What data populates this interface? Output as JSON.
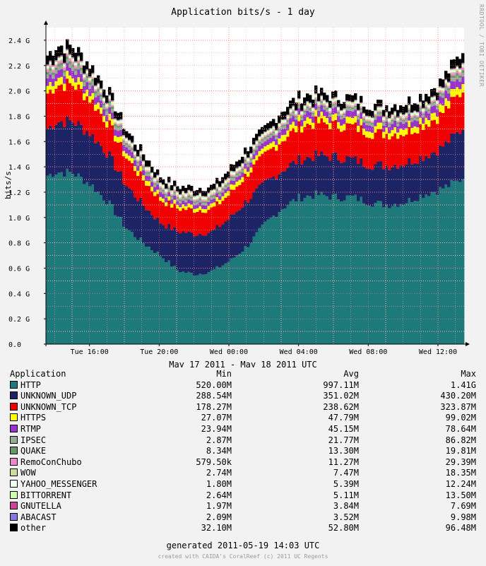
{
  "chart_data": {
    "type": "area",
    "stacked": true,
    "title": "Application bits/s - 1 day",
    "ylabel": "bits/s",
    "xlabel": "May 17 2011 - May 18 2011 UTC",
    "ylim": [
      0,
      2.5
    ],
    "y_unit": "G",
    "y_ticks": [
      "0.0",
      "0.2 G",
      "0.4 G",
      "0.6 G",
      "0.8 G",
      "1.0 G",
      "1.2 G",
      "1.4 G",
      "1.6 G",
      "1.8 G",
      "2.0 G",
      "2.2 G",
      "2.4 G"
    ],
    "x_ticks": [
      "Tue 16:00",
      "Tue 20:00",
      "Wed 00:00",
      "Wed 04:00",
      "Wed 08:00",
      "Wed 12:00"
    ],
    "grid": true,
    "x": [
      "Tue 13:30",
      "Tue 14:00",
      "Tue 15:00",
      "Tue 16:00",
      "Tue 17:00",
      "Tue 18:00",
      "Tue 19:00",
      "Tue 20:00",
      "Tue 21:00",
      "Tue 22:00",
      "Tue 23:00",
      "Wed 00:00",
      "Wed 01:00",
      "Wed 02:00",
      "Wed 03:00",
      "Wed 04:00",
      "Wed 05:00",
      "Wed 06:00",
      "Wed 07:00",
      "Wed 08:00",
      "Wed 09:00",
      "Wed 10:00",
      "Wed 11:00",
      "Wed 12:00",
      "Wed 13:00",
      "Wed 13:30"
    ],
    "series": [
      {
        "name": "HTTP",
        "color": "#1e7a7a",
        "values": [
          1.33,
          1.36,
          1.35,
          1.26,
          1.12,
          0.92,
          0.8,
          0.7,
          0.58,
          0.55,
          0.58,
          0.66,
          0.78,
          0.95,
          1.08,
          1.16,
          1.18,
          1.16,
          1.16,
          1.12,
          1.1,
          1.12,
          1.18,
          1.22,
          1.28,
          1.33
        ]
      },
      {
        "name": "UNKNOWN_UDP",
        "color": "#1c2466",
        "values": [
          0.37,
          0.4,
          0.41,
          0.4,
          0.38,
          0.34,
          0.3,
          0.26,
          0.31,
          0.32,
          0.31,
          0.34,
          0.36,
          0.32,
          0.3,
          0.3,
          0.31,
          0.32,
          0.3,
          0.3,
          0.31,
          0.31,
          0.3,
          0.32,
          0.38,
          0.4
        ]
      },
      {
        "name": "UNKNOWN_TCP",
        "color": "#f00000",
        "values": [
          0.28,
          0.29,
          0.29,
          0.27,
          0.24,
          0.22,
          0.2,
          0.18,
          0.18,
          0.19,
          0.18,
          0.19,
          0.21,
          0.22,
          0.24,
          0.26,
          0.26,
          0.25,
          0.26,
          0.25,
          0.25,
          0.24,
          0.25,
          0.26,
          0.29,
          0.3
        ]
      },
      {
        "name": "HTTPS",
        "color": "#ffff00",
        "values": [
          0.06,
          0.06,
          0.06,
          0.05,
          0.05,
          0.04,
          0.04,
          0.03,
          0.03,
          0.03,
          0.03,
          0.04,
          0.04,
          0.04,
          0.05,
          0.05,
          0.05,
          0.05,
          0.05,
          0.05,
          0.05,
          0.05,
          0.05,
          0.06,
          0.06,
          0.07
        ]
      },
      {
        "name": "RTMP",
        "color": "#9933cc",
        "values": [
          0.06,
          0.06,
          0.06,
          0.06,
          0.05,
          0.05,
          0.04,
          0.04,
          0.03,
          0.03,
          0.03,
          0.03,
          0.04,
          0.04,
          0.05,
          0.05,
          0.05,
          0.05,
          0.05,
          0.05,
          0.05,
          0.05,
          0.05,
          0.06,
          0.06,
          0.06
        ]
      },
      {
        "name": "IPSEC",
        "color": "#99aa99",
        "values": [
          0.03,
          0.03,
          0.03,
          0.03,
          0.03,
          0.02,
          0.02,
          0.02,
          0.02,
          0.02,
          0.02,
          0.02,
          0.02,
          0.02,
          0.02,
          0.02,
          0.02,
          0.02,
          0.02,
          0.02,
          0.02,
          0.02,
          0.02,
          0.02,
          0.03,
          0.03
        ]
      },
      {
        "name": "QUAKE",
        "color": "#669966",
        "values": [
          0.02,
          0.02,
          0.02,
          0.02,
          0.02,
          0.01,
          0.01,
          0.01,
          0.01,
          0.01,
          0.01,
          0.01,
          0.01,
          0.01,
          0.01,
          0.01,
          0.01,
          0.01,
          0.01,
          0.01,
          0.01,
          0.01,
          0.01,
          0.01,
          0.02,
          0.02
        ]
      },
      {
        "name": "RemoConChubo",
        "color": "#ee88cc",
        "values": [
          0.02,
          0.02,
          0.02,
          0.01,
          0.01,
          0.01,
          0.01,
          0.01,
          0.01,
          0.01,
          0.01,
          0.01,
          0.01,
          0.01,
          0.01,
          0.01,
          0.01,
          0.01,
          0.01,
          0.01,
          0.01,
          0.01,
          0.01,
          0.01,
          0.02,
          0.02
        ]
      },
      {
        "name": "WOW",
        "color": "#ccdd99",
        "values": [
          0.01,
          0.01,
          0.01,
          0.01,
          0.01,
          0.01,
          0.01,
          0.01,
          0.01,
          0.01,
          0.01,
          0.01,
          0.01,
          0.01,
          0.01,
          0.01,
          0.01,
          0.01,
          0.01,
          0.01,
          0.01,
          0.01,
          0.01,
          0.01,
          0.01,
          0.01
        ]
      },
      {
        "name": "YAHOO_MESSENGER",
        "color": "#eeffee",
        "values": [
          0.01,
          0.01,
          0.01,
          0.01,
          0.01,
          0.01,
          0.01,
          0.01,
          0.01,
          0.01,
          0.01,
          0.01,
          0.01,
          0.01,
          0.01,
          0.01,
          0.01,
          0.01,
          0.01,
          0.01,
          0.01,
          0.01,
          0.01,
          0.01,
          0.01,
          0.01
        ]
      },
      {
        "name": "BITTORRENT",
        "color": "#ccffaa",
        "values": [
          0.01,
          0.01,
          0.01,
          0.01,
          0.01,
          0.01,
          0.01,
          0.01,
          0.01,
          0.01,
          0.01,
          0.01,
          0.01,
          0.01,
          0.01,
          0.01,
          0.01,
          0.01,
          0.01,
          0.01,
          0.01,
          0.01,
          0.01,
          0.01,
          0.01,
          0.01
        ]
      },
      {
        "name": "GNUTELLA",
        "color": "#cc4499",
        "values": [
          0.005,
          0.005,
          0.005,
          0.005,
          0.005,
          0.004,
          0.003,
          0.003,
          0.003,
          0.003,
          0.003,
          0.003,
          0.003,
          0.003,
          0.004,
          0.004,
          0.004,
          0.004,
          0.004,
          0.004,
          0.004,
          0.004,
          0.004,
          0.004,
          0.005,
          0.005
        ]
      },
      {
        "name": "ABACAST",
        "color": "#8877dd",
        "values": [
          0.005,
          0.005,
          0.005,
          0.004,
          0.004,
          0.004,
          0.003,
          0.003,
          0.003,
          0.003,
          0.003,
          0.003,
          0.003,
          0.003,
          0.003,
          0.003,
          0.003,
          0.003,
          0.003,
          0.003,
          0.003,
          0.003,
          0.003,
          0.004,
          0.004,
          0.005
        ]
      },
      {
        "name": "other",
        "color": "#000000",
        "values": [
          0.07,
          0.08,
          0.07,
          0.06,
          0.06,
          0.05,
          0.05,
          0.04,
          0.04,
          0.04,
          0.04,
          0.05,
          0.05,
          0.05,
          0.06,
          0.06,
          0.06,
          0.05,
          0.05,
          0.05,
          0.05,
          0.06,
          0.06,
          0.06,
          0.07,
          0.08
        ]
      }
    ]
  },
  "legend": {
    "header": {
      "name": "Application",
      "min": "Min",
      "avg": "Avg",
      "max": "Max"
    },
    "rows": [
      {
        "name": "HTTP",
        "color": "#1e7a7a",
        "min": "520.00M",
        "avg": "997.11M",
        "max": "1.41G"
      },
      {
        "name": "UNKNOWN_UDP",
        "color": "#1c2466",
        "min": "288.54M",
        "avg": "351.02M",
        "max": "430.20M"
      },
      {
        "name": "UNKNOWN_TCP",
        "color": "#f00000",
        "min": "178.27M",
        "avg": "238.62M",
        "max": "323.87M"
      },
      {
        "name": "HTTPS",
        "color": "#ffff00",
        "min": "27.07M",
        "avg": "47.79M",
        "max": "99.02M"
      },
      {
        "name": "RTMP",
        "color": "#9933cc",
        "min": "23.94M",
        "avg": "45.15M",
        "max": "78.64M"
      },
      {
        "name": "IPSEC",
        "color": "#99aa99",
        "min": "2.87M",
        "avg": "21.77M",
        "max": "86.82M"
      },
      {
        "name": "QUAKE",
        "color": "#669966",
        "min": "8.34M",
        "avg": "13.30M",
        "max": "19.81M"
      },
      {
        "name": "RemoConChubo",
        "color": "#ee88cc",
        "min": "579.50k",
        "avg": "11.27M",
        "max": "29.39M"
      },
      {
        "name": "WOW",
        "color": "#ccdd99",
        "min": "2.74M",
        "avg": "7.47M",
        "max": "18.35M"
      },
      {
        "name": "YAHOO_MESSENGER",
        "color": "#eeffee",
        "min": "1.80M",
        "avg": "5.39M",
        "max": "12.24M"
      },
      {
        "name": "BITTORRENT",
        "color": "#ccffaa",
        "min": "2.64M",
        "avg": "5.11M",
        "max": "13.50M"
      },
      {
        "name": "GNUTELLA",
        "color": "#cc4499",
        "min": "1.97M",
        "avg": "3.84M",
        "max": "7.69M"
      },
      {
        "name": "ABACAST",
        "color": "#8877dd",
        "min": "2.09M",
        "avg": "3.52M",
        "max": "9.98M"
      },
      {
        "name": "other",
        "color": "#000000",
        "min": "32.10M",
        "avg": "52.80M",
        "max": "96.48M"
      }
    ]
  },
  "footer": {
    "generated": "generated 2011-05-19 14:03 UTC",
    "credit": "created with CAIDA's CoralReef (c) 2011 UC Regents",
    "vendor": "RRDTOOL / TOBI OETIKER"
  }
}
